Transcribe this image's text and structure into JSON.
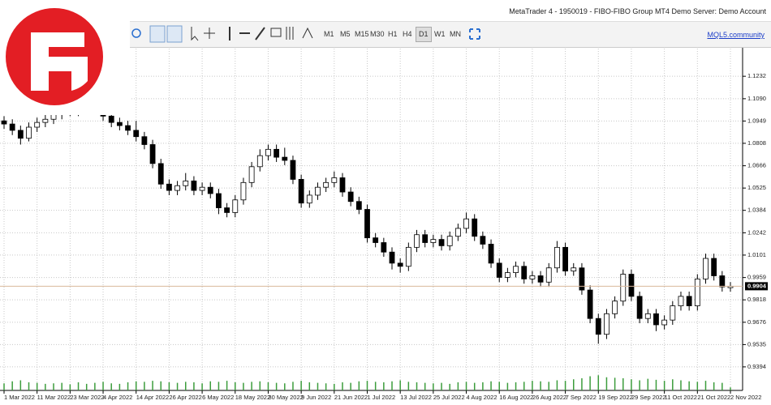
{
  "window": {
    "title": "MetaTrader 4 - 1950019 - FIBO-FIBO Group MT4 Demo Server: Demo Account",
    "timeframes": [
      "M1",
      "M5",
      "M15",
      "M30",
      "H1",
      "H4",
      "D1",
      "W1",
      "MN"
    ],
    "active_timeframe": "D1",
    "link": "MQL5.community"
  },
  "chart_data": {
    "type": "candlestick",
    "categories": [
      "1 Mar 2022",
      null,
      null,
      null,
      "11 Mar 2022",
      null,
      null,
      null,
      "23 Mar 2022",
      null,
      null,
      null,
      "4 Apr 2022",
      null,
      null,
      null,
      "14 Apr 2022",
      null,
      null,
      null,
      "26 Apr 2022",
      null,
      null,
      null,
      "6 May 2022",
      null,
      null,
      null,
      "18 May 2022",
      null,
      null,
      null,
      "30 May 2022",
      null,
      null,
      null,
      "9 Jun 2022",
      null,
      null,
      null,
      "21 Jun 2022",
      null,
      null,
      null,
      "1 Jul 2022",
      null,
      null,
      null,
      "13 Jul 2022",
      null,
      null,
      null,
      "25 Jul 2022",
      null,
      null,
      null,
      "4 Aug 2022",
      null,
      null,
      null,
      "16 Aug 2022",
      null,
      null,
      null,
      "26 Aug 2022",
      null,
      null,
      null,
      "7 Sep 2022",
      null,
      null,
      null,
      "19 Sep 2022",
      null,
      null,
      null,
      "29 Sep 2022",
      null,
      null,
      null,
      "11 Oct 2022",
      null,
      null,
      null,
      "21 Oct 2022",
      null,
      null,
      null,
      "2 Nov 2022"
    ],
    "open": [
      1.095,
      1.093,
      1.089,
      1.084,
      1.091,
      1.094,
      1.096,
      1.099,
      1.102,
      1.101,
      1.104,
      1.106,
      1.103,
      1.098,
      1.094,
      1.092,
      1.089,
      1.085,
      1.08,
      1.068,
      1.055,
      1.051,
      1.054,
      1.057,
      1.051,
      1.053,
      1.049,
      1.04,
      1.037,
      1.045,
      1.056,
      1.066,
      1.073,
      1.077,
      1.072,
      1.07,
      1.058,
      1.043,
      1.048,
      1.053,
      1.056,
      1.059,
      1.05,
      1.044,
      1.039,
      1.021,
      1.018,
      1.012,
      1.005,
      1.003,
      1.015,
      1.023,
      1.018,
      1.02,
      1.016,
      1.022,
      1.027,
      1.033,
      1.022,
      1.017,
      1.005,
      0.996,
      0.999,
      1.003,
      0.995,
      0.997,
      0.993,
      1.002,
      1.015,
      1.0,
      1.002,
      0.988,
      0.97,
      0.96,
      0.973,
      0.981,
      0.998,
      0.984,
      0.97,
      0.973,
      0.966,
      0.969,
      0.978,
      0.984,
      0.978,
      0.995,
      1.008,
      0.997,
      0.9895
    ],
    "high": [
      1.098,
      1.096,
      1.092,
      1.094,
      1.097,
      1.099,
      1.102,
      1.105,
      1.105,
      1.107,
      1.109,
      1.109,
      1.106,
      1.101,
      1.097,
      1.095,
      1.095,
      1.088,
      1.083,
      1.071,
      1.058,
      1.057,
      1.062,
      1.06,
      1.056,
      1.056,
      1.052,
      1.043,
      1.048,
      1.059,
      1.069,
      1.077,
      1.08,
      1.08,
      1.078,
      1.073,
      1.061,
      1.051,
      1.056,
      1.059,
      1.063,
      1.062,
      1.053,
      1.047,
      1.042,
      1.024,
      1.021,
      1.015,
      1.008,
      1.018,
      1.026,
      1.026,
      1.023,
      1.023,
      1.025,
      1.03,
      1.037,
      1.036,
      1.025,
      1.02,
      1.008,
      1.002,
      1.006,
      1.006,
      1.0,
      1.0,
      1.005,
      1.019,
      1.018,
      1.005,
      1.005,
      0.991,
      0.973,
      0.976,
      0.984,
      1.001,
      1.001,
      0.987,
      0.976,
      0.976,
      0.972,
      0.981,
      0.987,
      0.987,
      0.998,
      1.011,
      1.011,
      1.0,
      0.993
    ],
    "low": [
      1.09,
      1.086,
      1.08,
      1.082,
      1.088,
      1.091,
      1.093,
      1.096,
      1.098,
      1.098,
      1.101,
      1.1,
      1.095,
      1.091,
      1.089,
      1.086,
      1.082,
      1.077,
      1.065,
      1.052,
      1.048,
      1.048,
      1.051,
      1.048,
      1.048,
      1.046,
      1.036,
      1.034,
      1.034,
      1.042,
      1.053,
      1.063,
      1.07,
      1.069,
      1.067,
      1.055,
      1.04,
      1.04,
      1.045,
      1.05,
      1.053,
      1.047,
      1.041,
      1.036,
      1.018,
      1.015,
      1.009,
      1.001,
      0.999,
      1.0,
      1.012,
      1.015,
      1.015,
      1.013,
      1.013,
      1.019,
      1.024,
      1.019,
      1.014,
      1.002,
      0.993,
      0.993,
      0.996,
      0.992,
      0.992,
      0.99,
      0.99,
      0.999,
      0.997,
      0.997,
      0.985,
      0.967,
      0.954,
      0.957,
      0.97,
      0.978,
      0.981,
      0.967,
      0.967,
      0.962,
      0.963,
      0.966,
      0.975,
      0.975,
      0.975,
      0.992,
      0.994,
      0.987,
      0.987
    ],
    "close": [
      1.093,
      1.089,
      1.084,
      1.091,
      1.094,
      1.096,
      1.099,
      1.102,
      1.101,
      1.104,
      1.106,
      1.103,
      1.098,
      1.094,
      1.092,
      1.089,
      1.085,
      1.08,
      1.068,
      1.055,
      1.051,
      1.054,
      1.057,
      1.051,
      1.053,
      1.049,
      1.04,
      1.037,
      1.045,
      1.056,
      1.066,
      1.073,
      1.077,
      1.072,
      1.07,
      1.058,
      1.043,
      1.048,
      1.053,
      1.056,
      1.059,
      1.05,
      1.044,
      1.039,
      1.021,
      1.018,
      1.012,
      1.005,
      1.003,
      1.015,
      1.023,
      1.018,
      1.02,
      1.016,
      1.022,
      1.027,
      1.033,
      1.022,
      1.017,
      1.005,
      0.996,
      0.999,
      1.003,
      0.995,
      0.997,
      0.993,
      1.002,
      1.015,
      1.0,
      1.002,
      0.988,
      0.97,
      0.96,
      0.973,
      0.981,
      0.998,
      0.984,
      0.97,
      0.973,
      0.966,
      0.969,
      0.978,
      0.984,
      0.978,
      0.995,
      1.008,
      0.997,
      0.99,
      0.9904
    ],
    "volumes": [
      14,
      18,
      20,
      16,
      15,
      13,
      14,
      15,
      12,
      16,
      13,
      15,
      17,
      14,
      13,
      16,
      18,
      17,
      19,
      18,
      16,
      15,
      17,
      16,
      14,
      18,
      17,
      19,
      16,
      15,
      17,
      18,
      16,
      15,
      14,
      17,
      19,
      16,
      15,
      14,
      13,
      16,
      15,
      18,
      19,
      17,
      16,
      18,
      20,
      17,
      16,
      15,
      14,
      15,
      13,
      16,
      17,
      15,
      16,
      18,
      17,
      15,
      16,
      17,
      19,
      18,
      17,
      20,
      19,
      22,
      24,
      28,
      30,
      26,
      25,
      24,
      22,
      20,
      23,
      21,
      19,
      22,
      20,
      18,
      17,
      19,
      16,
      15,
      6
    ],
    "volume_ylim": [
      0,
      40
    ],
    "volume_color": "#3c9c3c",
    "ylim": [
      0.9245,
      1.1407
    ],
    "yticks": [
      1.1232,
      {
        "value": 1.109,
        "label": "1.1090"
      },
      1.0949,
      1.0808,
      1.0666,
      1.0525,
      1.0384,
      1.0242,
      1.0101,
      0.9959,
      0.9818,
      0.9676,
      0.9535,
      0.9394
    ],
    "current_price": 0.9904,
    "price_line_color": "#d9b89c",
    "up_color": "#ffffff",
    "down_color": "#000000",
    "grid": true
  }
}
